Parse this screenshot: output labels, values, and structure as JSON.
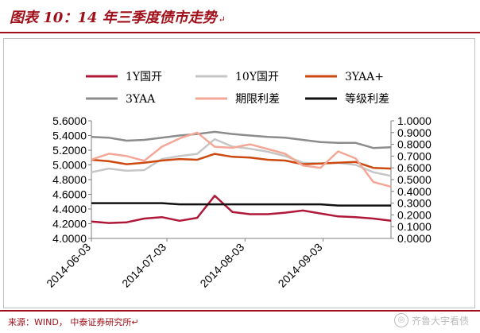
{
  "header": {
    "title": "图表 10：14 年三季度债市走势",
    "mark": "↵"
  },
  "source": {
    "text": "来源：WIND，  中泰证券研究所",
    "mark": "↵"
  },
  "watermark": {
    "text": "齐鲁大宇看债",
    "icon": "wechat-icon"
  },
  "chart_data": {
    "type": "line",
    "x": [
      "2014-06-03",
      "2014-06-10",
      "2014-06-17",
      "2014-06-24",
      "2014-07-01",
      "2014-07-08",
      "2014-07-15",
      "2014-07-22",
      "2014-07-29",
      "2014-08-05",
      "2014-08-12",
      "2014-08-19",
      "2014-08-26",
      "2014-09-02",
      "2014-09-09",
      "2014-09-16",
      "2014-09-23",
      "2014-09-30"
    ],
    "x_ticks": [
      "2014-06-03",
      "2014-07-03",
      "2014-08-03",
      "2014-09-03"
    ],
    "y_left": {
      "ylim": [
        4.0,
        5.6
      ],
      "ticks": [
        "4.0000",
        "4.2000",
        "4.4000",
        "4.6000",
        "4.8000",
        "5.0000",
        "5.2000",
        "5.4000",
        "5.6000"
      ]
    },
    "y_right": {
      "ylim": [
        0.0,
        1.0
      ],
      "ticks": [
        "0.0000",
        "0.1000",
        "0.2000",
        "0.3000",
        "0.4000",
        "0.5000",
        "0.6000",
        "0.7000",
        "0.8000",
        "0.9000",
        "1.0000"
      ]
    },
    "legend_position": "top",
    "series": [
      {
        "name": "1Y国开",
        "axis": "left",
        "color": "#b0183a",
        "values": [
          4.23,
          4.21,
          4.22,
          4.27,
          4.29,
          4.24,
          4.28,
          4.58,
          4.36,
          4.33,
          4.33,
          4.35,
          4.38,
          4.34,
          4.3,
          4.29,
          4.27,
          4.24
        ]
      },
      {
        "name": "10Y国开",
        "axis": "left",
        "color": "#c6c6c6",
        "values": [
          4.9,
          4.95,
          4.92,
          4.93,
          5.08,
          5.12,
          5.15,
          5.35,
          5.25,
          5.22,
          5.18,
          5.12,
          5.03,
          5.02,
          5.03,
          5.0,
          4.9,
          4.85
        ]
      },
      {
        "name": "3YAA+",
        "axis": "left",
        "color": "#cc4a10",
        "values": [
          5.07,
          5.05,
          5.01,
          5.03,
          5.06,
          5.08,
          5.07,
          5.15,
          5.11,
          5.1,
          5.07,
          5.06,
          5.01,
          5.02,
          5.03,
          5.04,
          4.96,
          4.95
        ]
      },
      {
        "name": "3YAA",
        "axis": "left",
        "color": "#8c8c8c",
        "values": [
          5.38,
          5.37,
          5.33,
          5.34,
          5.37,
          5.4,
          5.42,
          5.45,
          5.42,
          5.4,
          5.38,
          5.37,
          5.34,
          5.31,
          5.3,
          5.3,
          5.23,
          5.24
        ]
      },
      {
        "name": "期限利差",
        "axis": "right",
        "color": "#f3a797",
        "values": [
          0.67,
          0.72,
          0.7,
          0.66,
          0.78,
          0.85,
          0.9,
          0.78,
          0.77,
          0.8,
          0.76,
          0.72,
          0.62,
          0.6,
          0.74,
          0.68,
          0.48,
          0.44
        ]
      },
      {
        "name": "等级利差",
        "axis": "right",
        "color": "#111111",
        "values": [
          0.3,
          0.3,
          0.3,
          0.3,
          0.3,
          0.29,
          0.29,
          0.29,
          0.29,
          0.29,
          0.29,
          0.29,
          0.29,
          0.29,
          0.28,
          0.28,
          0.28,
          0.28
        ]
      }
    ]
  }
}
